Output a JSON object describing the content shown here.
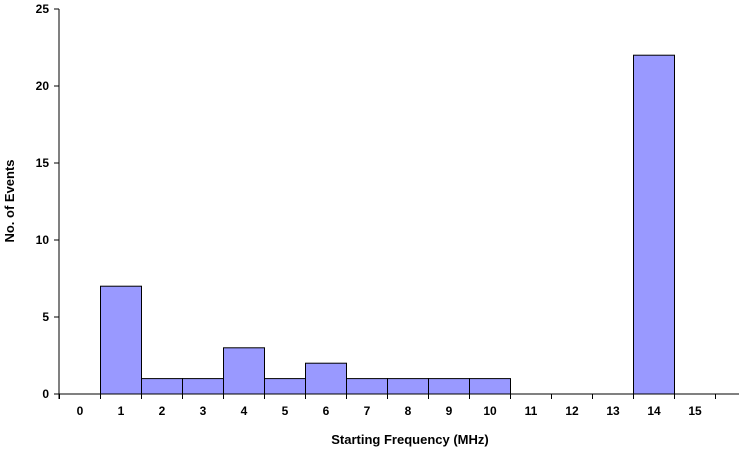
{
  "chart_data": {
    "type": "bar",
    "title": "",
    "xlabel": "Starting Frequency (MHz)",
    "ylabel": "No. of Events",
    "x_ticks": [
      "0",
      "1",
      "2",
      "3",
      "4",
      "5",
      "6",
      "7",
      "8",
      "9",
      "10",
      "11",
      "12",
      "13",
      "14",
      "15"
    ],
    "y_ticks": [
      0,
      5,
      10,
      15,
      20,
      25
    ],
    "ylim": [
      0,
      25
    ],
    "categories": [
      1,
      2,
      3,
      4,
      5,
      6,
      7,
      8,
      9,
      10,
      14
    ],
    "values": [
      7,
      1,
      1,
      3,
      1,
      2,
      1,
      1,
      1,
      1,
      22
    ],
    "grid": false,
    "legend": "none",
    "colors": {
      "bar_fill": "#9999ff",
      "bar_stroke": "#000000",
      "axis": "#000000"
    }
  }
}
